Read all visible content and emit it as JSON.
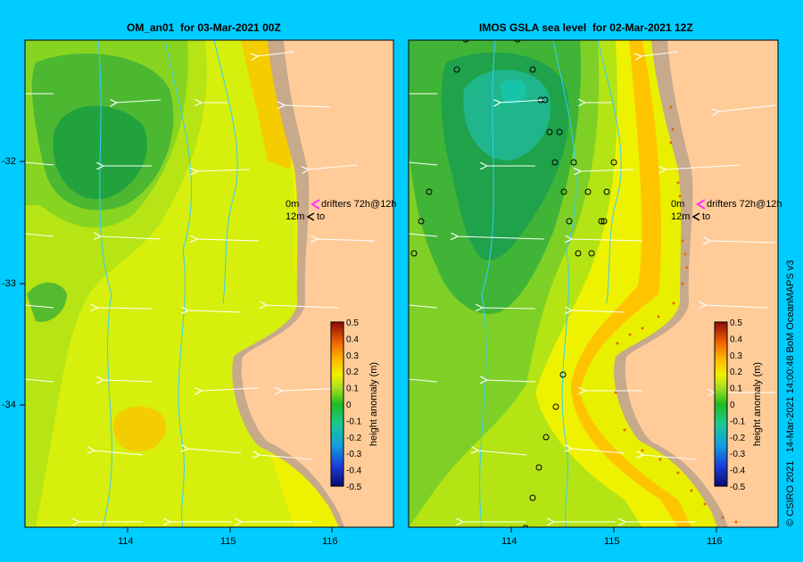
{
  "left_panel": {
    "title": "OM_an01  for 03-Mar-2021 00Z",
    "drifter_label": "drifters 72h@12h",
    "drifter_depth_top": "0m",
    "drifter_depth_bottom": "12m",
    "drifter_to_label": "to"
  },
  "right_panel": {
    "title": "IMOS GSLA sea level  for 02-Mar-2021 12Z",
    "drifter_label": "drifters 72h@12h",
    "drifter_depth_top": "0m",
    "drifter_depth_bottom": "12m",
    "drifter_to_label": "to"
  },
  "axes": {
    "x_ticks": [
      "114",
      "115",
      "116"
    ],
    "y_ticks": [
      "-32",
      "-33",
      "-34"
    ]
  },
  "colorbar": {
    "label": "height anomaly (m)",
    "ticks": [
      "0.5",
      "0.4",
      "0.3",
      "0.2",
      "0.1",
      "0",
      "-0.1",
      "-0.2",
      "-0.3",
      "-0.4",
      "-0.5"
    ],
    "range": [
      -0.5,
      0.5
    ]
  },
  "credit": "© CSIRO 2021   14-Mar-2021 14:00:48 BoM OceanMAPS v3",
  "colors": {
    "background": "#00ccff",
    "land": "#ffcc99",
    "shelf": "#c9a98a",
    "isobath": "#33ccff",
    "arrow": "#ffffff",
    "drifter_surface": "#ff33ff",
    "drifter_deep": "#000000"
  }
}
